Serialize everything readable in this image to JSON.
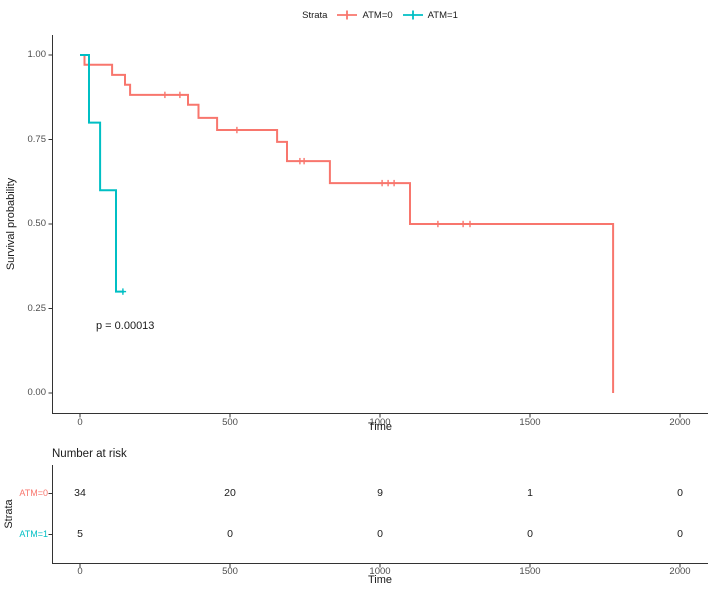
{
  "legend": {
    "title": "Strata",
    "items": [
      {
        "label": "ATM=0",
        "color": "#F8766D"
      },
      {
        "label": "ATM=1",
        "color": "#00BFC4"
      }
    ]
  },
  "chart_data": {
    "type": "line",
    "subtype": "kaplan-meier-step",
    "title": "",
    "xlabel": "Time",
    "ylabel": "Survival probability",
    "x_ticks": [
      0,
      500,
      1000,
      1500,
      2000
    ],
    "y_ticks": [
      "0.00",
      "0.25",
      "0.50",
      "0.75",
      "1.00"
    ],
    "y_tick_values": [
      0,
      0.25,
      0.5,
      0.75,
      1.0
    ],
    "xlim": [
      -90,
      2090
    ],
    "ylim": [
      0,
      1
    ],
    "grid": false,
    "legend_position": "top",
    "pvalue_label": "p = 0.00013",
    "pvalue_position": {
      "time": 50,
      "survival": 0.21
    },
    "series": [
      {
        "name": "ATM=0",
        "color": "#F8766D",
        "steps": [
          [
            0,
            1.0
          ],
          [
            15,
            0.971
          ],
          [
            107,
            0.941
          ],
          [
            150,
            0.912
          ],
          [
            167,
            0.882
          ],
          [
            360,
            0.853
          ],
          [
            395,
            0.814
          ],
          [
            457,
            0.778
          ],
          [
            657,
            0.743
          ],
          [
            690,
            0.686
          ],
          [
            833,
            0.621
          ],
          [
            1100,
            0.5
          ],
          [
            1777,
            0.0
          ]
        ],
        "censor_marks": [
          [
            283,
            0.882
          ],
          [
            333,
            0.882
          ],
          [
            523,
            0.778
          ],
          [
            733,
            0.686
          ],
          [
            747,
            0.686
          ],
          [
            1007,
            0.621
          ],
          [
            1027,
            0.621
          ],
          [
            1047,
            0.621
          ],
          [
            1193,
            0.5
          ],
          [
            1277,
            0.5
          ],
          [
            1300,
            0.5
          ]
        ]
      },
      {
        "name": "ATM=1",
        "color": "#00BFC4",
        "steps": [
          [
            0,
            1.0
          ],
          [
            30,
            0.8
          ],
          [
            67,
            0.6
          ],
          [
            120,
            0.3
          ],
          [
            147,
            0.3
          ]
        ],
        "censor_marks": [
          [
            143,
            0.3
          ]
        ]
      }
    ]
  },
  "risk_table": {
    "title": "Number at risk",
    "ylabel": "Strata",
    "xlabel": "Time",
    "times": [
      0,
      500,
      1000,
      1500,
      2000
    ],
    "rows": [
      {
        "label": "ATM=0",
        "color": "#F8766D",
        "counts": [
          "34",
          "20",
          "9",
          "1",
          "0"
        ]
      },
      {
        "label": "ATM=1",
        "color": "#00BFC4",
        "counts": [
          "5",
          "0",
          "0",
          "0",
          "0"
        ]
      }
    ]
  },
  "colors": {
    "axis": "#333333",
    "tick_text": "#4d4d4d",
    "text": "#1a1a1a",
    "background": "#ffffff"
  }
}
